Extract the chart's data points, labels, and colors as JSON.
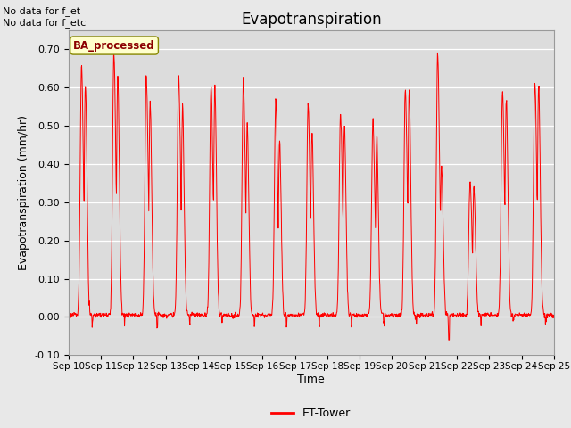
{
  "title": "Evapotranspiration",
  "ylabel": "Evapotranspiration (mm/hr)",
  "xlabel": "Time",
  "text_top_left": "No data for f_et\nNo data for f_etc",
  "legend_label": "ET-Tower",
  "legend_line_color": "#ff0000",
  "box_label": "BA_processed",
  "box_facecolor": "#ffffcc",
  "box_edgecolor": "#888800",
  "background_color": "#e8e8e8",
  "plot_bg_color": "#dcdcdc",
  "line_color": "#ff0000",
  "ylim": [
    -0.1,
    0.75
  ],
  "yticks": [
    -0.1,
    0.0,
    0.1,
    0.2,
    0.3,
    0.4,
    0.5,
    0.6,
    0.7
  ],
  "start_day": 10,
  "end_day": 25,
  "peaks": [
    0.65,
    0.69,
    0.63,
    0.63,
    0.6,
    0.62,
    0.57,
    0.55,
    0.53,
    0.51,
    0.59,
    0.69,
    0.35,
    0.59,
    0.61,
    0.62
  ],
  "secondary_peaks": [
    0.61,
    0.63,
    0.56,
    0.55,
    0.6,
    0.5,
    0.46,
    0.48,
    0.5,
    0.47,
    0.59,
    0.4,
    0.34,
    0.57,
    0.61,
    0.59
  ],
  "title_fontsize": 12,
  "axis_fontsize": 9,
  "tick_fontsize": 8
}
